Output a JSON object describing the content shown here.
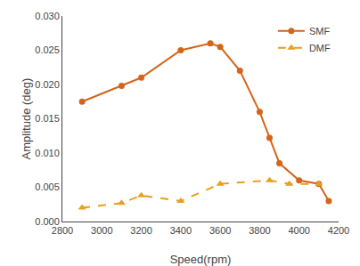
{
  "chart_data": {
    "type": "line",
    "x_label": "Speed(rpm)",
    "y_label": "Amplitude (deg)",
    "series": [
      {
        "name": "SMF",
        "color": "#D4651A",
        "marker": "circle",
        "line_style": "solid",
        "x": [
          2900,
          3100,
          3200,
          3400,
          3550,
          3600,
          3700,
          3800,
          3850,
          3900,
          4000,
          4100,
          4150
        ],
        "values": [
          0.0175,
          0.0198,
          0.021,
          0.025,
          0.026,
          0.0255,
          0.022,
          0.016,
          0.0122,
          0.0085,
          0.006,
          0.0055,
          0.003
        ]
      },
      {
        "name": "DMF",
        "color": "#E8A020",
        "marker": "triangle-up",
        "line_style": "dash",
        "x": [
          2900,
          3100,
          3200,
          3400,
          3600,
          3850,
          3950,
          4100
        ],
        "values": [
          0.002,
          0.0027,
          0.0038,
          0.003,
          0.0055,
          0.006,
          0.0055,
          0.0055
        ]
      }
    ],
    "xlim": [
      2800,
      4200
    ],
    "ylim": [
      0.0,
      0.03
    ],
    "xticks": [
      2800,
      3000,
      3200,
      3400,
      3600,
      3800,
      4000,
      4200
    ],
    "yticks": [
      {
        "value": 0.0,
        "label": "0.000"
      },
      {
        "value": 0.005,
        "label": "0.005"
      },
      {
        "value": 0.01,
        "label": "0.010"
      },
      {
        "value": 0.015,
        "label": "0.015"
      },
      {
        "value": 0.02,
        "label": "0.020"
      },
      {
        "value": 0.025,
        "label": "0.025"
      },
      {
        "value": 0.03,
        "label": "0.030"
      }
    ],
    "grid": false,
    "legend": "upper right"
  }
}
